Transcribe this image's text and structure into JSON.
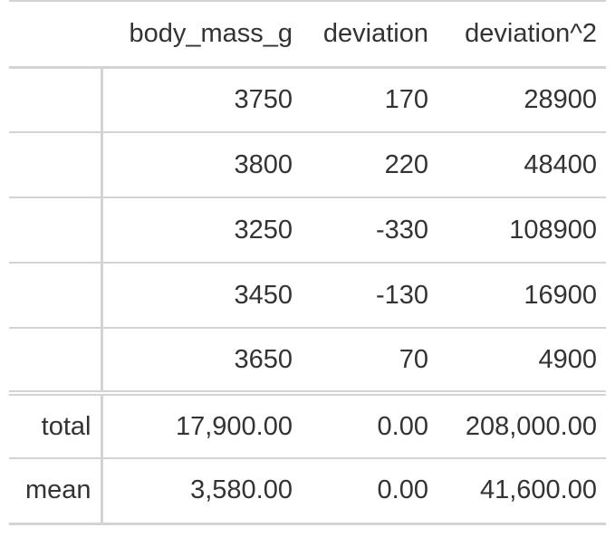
{
  "table": {
    "columns": [
      "",
      "body_mass_g",
      "deviation",
      "deviation^2"
    ],
    "rows": [
      {
        "label": "",
        "body_mass_g": "3750",
        "deviation": "170",
        "deviation_sq": "28900"
      },
      {
        "label": "",
        "body_mass_g": "3800",
        "deviation": "220",
        "deviation_sq": "48400"
      },
      {
        "label": "",
        "body_mass_g": "3250",
        "deviation": "-330",
        "deviation_sq": "108900"
      },
      {
        "label": "",
        "body_mass_g": "3450",
        "deviation": "-130",
        "deviation_sq": "16900"
      },
      {
        "label": "",
        "body_mass_g": "3650",
        "deviation": "70",
        "deviation_sq": "4900"
      }
    ],
    "summary": [
      {
        "label": "total",
        "body_mass_g": "17,900.00",
        "deviation": "0.00",
        "deviation_sq": "208,000.00"
      },
      {
        "label": "mean",
        "body_mass_g": "3,580.00",
        "deviation": "0.00",
        "deviation_sq": "41,600.00"
      }
    ]
  }
}
